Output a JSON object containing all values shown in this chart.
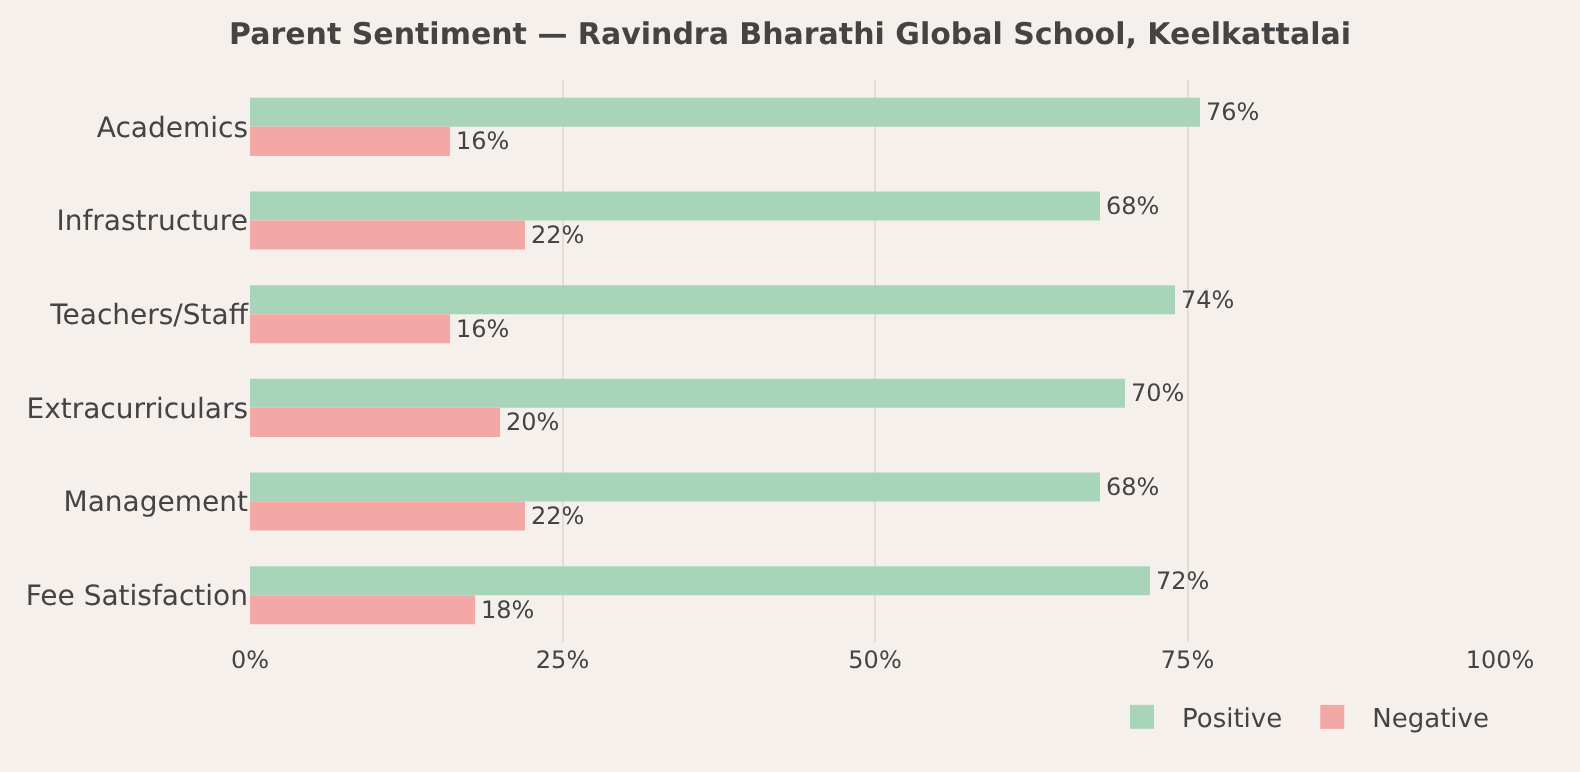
{
  "chart_data": {
    "type": "bar",
    "orientation": "horizontal",
    "title": "Parent Sentiment — Ravindra Bharathi Global School, Keelkattalai",
    "categories": [
      "Academics",
      "Infrastructure",
      "Teachers/Staff",
      "Extracurriculars",
      "Management",
      "Fee Satisfaction"
    ],
    "series": [
      {
        "name": "Positive",
        "color": "#a8d5b9",
        "values": [
          76,
          68,
          74,
          70,
          68,
          72
        ],
        "value_labels": [
          "76%",
          "68%",
          "74%",
          "70%",
          "68%",
          "72%"
        ]
      },
      {
        "name": "Negative",
        "color": "#f4a8a6",
        "values": [
          16,
          22,
          16,
          20,
          22,
          18
        ],
        "value_labels": [
          "16%",
          "22%",
          "16%",
          "20%",
          "22%",
          "18%"
        ]
      }
    ],
    "xlim": [
      0,
      100
    ],
    "xticks": [
      {
        "value": 0,
        "label": "0%"
      },
      {
        "value": 25,
        "label": "25%"
      },
      {
        "value": 50,
        "label": "50%"
      },
      {
        "value": 75,
        "label": "75%"
      },
      {
        "value": 100,
        "label": "100%"
      }
    ],
    "grid": "x",
    "legend": "bottom right"
  }
}
